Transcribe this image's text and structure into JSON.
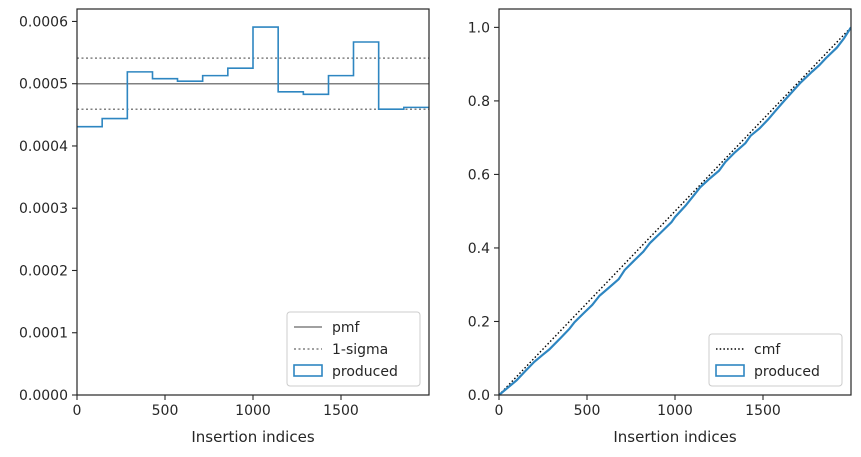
{
  "chart_data": [
    {
      "type": "histogram",
      "xlabel": "Insertion indices",
      "ylabel": "",
      "xlim": [
        0,
        2000
      ],
      "ylim": [
        0,
        0.00062
      ],
      "xticks": [
        0,
        500,
        1000,
        1500
      ],
      "xtick_labels": [
        "0",
        "500",
        "1000",
        "1500"
      ],
      "yticks": [
        0,
        0.0001,
        0.0002,
        0.0003,
        0.0004,
        0.0005,
        0.0006
      ],
      "ytick_labels": [
        "0.0000",
        "0.0001",
        "0.0002",
        "0.0003",
        "0.0004",
        "0.0005",
        "0.0006"
      ],
      "grid": false,
      "legend_position": "lower-right",
      "bin_edges": [
        0,
        143,
        286,
        429,
        571,
        714,
        857,
        1000,
        1143,
        1286,
        1429,
        1571,
        1714,
        1857,
        2000
      ],
      "series": [
        {
          "name": "pmf",
          "style": "solid",
          "color": "#808080",
          "value": 0.0005
        },
        {
          "name": "1-sigma",
          "style": "dotted",
          "color": "#808080",
          "values": [
            0.000459,
            0.000541
          ]
        },
        {
          "name": "produced",
          "style": "step",
          "color": "#2e86c1",
          "values": [
            0.000431,
            0.000444,
            0.000519,
            0.000508,
            0.000504,
            0.000513,
            0.000525,
            0.000591,
            0.000487,
            0.000483,
            0.000513,
            0.000567,
            0.000459,
            0.000462
          ]
        }
      ],
      "legend": [
        "pmf",
        "1-sigma",
        "produced"
      ]
    },
    {
      "type": "line",
      "xlabel": "Insertion indices",
      "ylabel": "",
      "xlim": [
        0,
        2000
      ],
      "ylim": [
        0,
        1.05
      ],
      "xticks": [
        0,
        500,
        1000,
        1500
      ],
      "xtick_labels": [
        "0",
        "500",
        "1000",
        "1500"
      ],
      "yticks": [
        0,
        0.2,
        0.4,
        0.6,
        0.8,
        1.0
      ],
      "ytick_labels": [
        "0.0",
        "0.2",
        "0.4",
        "0.6",
        "0.8",
        "1.0"
      ],
      "grid": false,
      "legend_position": "lower-right",
      "series": [
        {
          "name": "cmf",
          "style": "dotted",
          "color": "#000000",
          "x": [
            0,
            2000
          ],
          "y": [
            0,
            1.0
          ]
        },
        {
          "name": "produced",
          "style": "line",
          "color": "#2e86c1",
          "x": [
            0,
            50,
            100,
            143,
            200,
            250,
            286,
            350,
            400,
            429,
            480,
            530,
            571,
            620,
            680,
            714,
            760,
            820,
            857,
            920,
            980,
            1000,
            1060,
            1110,
            1143,
            1200,
            1250,
            1286,
            1340,
            1400,
            1429,
            1480,
            1530,
            1571,
            1620,
            1680,
            1714,
            1780,
            1820,
            1857,
            1920,
            1960,
            2000
          ],
          "y": [
            0,
            0.02,
            0.04,
            0.062,
            0.09,
            0.11,
            0.124,
            0.155,
            0.18,
            0.198,
            0.222,
            0.245,
            0.27,
            0.29,
            0.315,
            0.34,
            0.362,
            0.39,
            0.413,
            0.442,
            0.47,
            0.484,
            0.515,
            0.545,
            0.565,
            0.59,
            0.61,
            0.634,
            0.66,
            0.685,
            0.705,
            0.725,
            0.75,
            0.773,
            0.8,
            0.832,
            0.85,
            0.88,
            0.897,
            0.916,
            0.945,
            0.97,
            1.0
          ]
        }
      ],
      "legend": [
        "cmf",
        "produced"
      ]
    }
  ]
}
